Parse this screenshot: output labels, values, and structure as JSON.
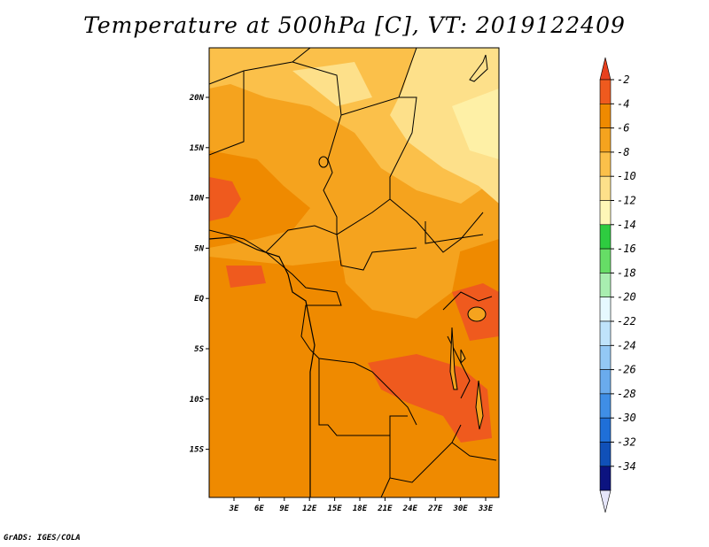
{
  "title": "Temperature at 500hPa [C], VT: 2019122409",
  "credit": "GrADS: IGES/COLA",
  "map": {
    "y_ticks": [
      "20N",
      "15N",
      "10N",
      "5N",
      "EQ",
      "5S",
      "10S",
      "15S"
    ],
    "x_ticks": [
      "3E",
      "6E",
      "9E",
      "12E",
      "15E",
      "18E",
      "21E",
      "24E",
      "27E",
      "30E",
      "33E"
    ],
    "lat_range": [
      -20,
      24.5
    ],
    "lon_range": [
      0,
      35
    ]
  },
  "colorbar": {
    "labels": [
      "-2",
      "-4",
      "-6",
      "-8",
      "-10",
      "-12",
      "-14",
      "-16",
      "-18",
      "-20",
      "-22",
      "-24",
      "-26",
      "-28",
      "-30",
      "-32",
      "-34"
    ],
    "colors": [
      "#ef5a1e",
      "#ef8a00",
      "#f5a31e",
      "#fbc04a",
      "#fde08a",
      "#fef7b7",
      "#2ecc40",
      "#66dd66",
      "#a8eeb0",
      "#e6f9ff",
      "#bfe3fb",
      "#93c8f5",
      "#6aabed",
      "#3f8ee6",
      "#1f6fd8",
      "#1050b8",
      "#0c1380"
    ],
    "top_arrow_color": "#e8401e",
    "bottom_arrow_color": "#e6e6fa"
  }
}
